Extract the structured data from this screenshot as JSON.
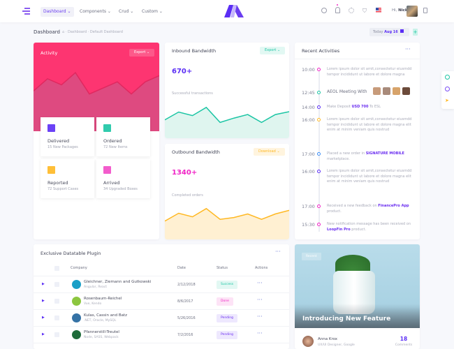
{
  "topbar": {
    "nav": [
      {
        "label": "Dashboard",
        "active": true
      },
      {
        "label": "Components"
      },
      {
        "label": "Crud"
      },
      {
        "label": "Custom"
      }
    ],
    "greeting": "Hi,",
    "user": "Nick"
  },
  "subheader": {
    "title": "Dashboard",
    "breadcrumb": [
      "Dashboard",
      "Default Dashboard"
    ],
    "today_label": "Today",
    "today_date": "Aug 16"
  },
  "activity": {
    "title": "Activity",
    "export_label": "Export",
    "chart_values": [
      55,
      75,
      65,
      85,
      50,
      60,
      70,
      50,
      70,
      80
    ],
    "tiles": [
      {
        "title": "Delivered",
        "sub": "15 New Packages",
        "icon": "books-icon",
        "color": "#5b2ef5"
      },
      {
        "title": "Ordered",
        "sub": "72 New Items",
        "icon": "layers-icon",
        "color": "#1bc5a4"
      },
      {
        "title": "Reported",
        "sub": "72 Support Cases",
        "icon": "mail-icon",
        "color": "#ffb822"
      },
      {
        "title": "Arrived",
        "sub": "34 Upgraded Boxes",
        "icon": "ruler-pencil-icon",
        "color": "#f24ac7"
      }
    ]
  },
  "inbound": {
    "title": "Inbound Bandwidth",
    "button": "Export",
    "value": "670+",
    "caption": "Successful transactions",
    "color": "#1bc5a4",
    "chart_values": [
      40,
      62,
      52,
      75,
      33,
      45,
      55,
      33,
      55,
      63
    ]
  },
  "outbound": {
    "title": "Outbound Bandwidth",
    "button": "Download",
    "value": "1340+",
    "caption": "Completed orders",
    "color": "#ffb822",
    "chart_values": [
      40,
      62,
      52,
      75,
      45,
      50,
      60,
      45,
      60,
      70
    ]
  },
  "recent": {
    "title": "Recent Activities",
    "events": [
      {
        "time": "10:00",
        "color": "#f024c6",
        "text": "Lorem ipsum dolor sit amit,consectetur eiusmdd tempor incididunt ut labore et dolore magna"
      },
      {
        "time": "12:45",
        "color": "#1bc5a4",
        "text": "AEOL Meeting With",
        "meeting": true
      },
      {
        "time": "14:00",
        "color": "#5b2ef5",
        "pre": "Make Deposit ",
        "link": "USD 700",
        "post": " To ESL"
      },
      {
        "time": "16:00",
        "color": "#ffb822",
        "text": "Lorem ipsum dolor sit amit,consectetur eiusmdd tempor incididunt ut labore et dolore magna elit enim at minim veniam quis nostrud"
      },
      {
        "time": "17:00",
        "color": "#3a8cf5",
        "pre": "Placed a new order in ",
        "link": "SIGNATURE MOBILE",
        "post": " marketplace."
      },
      {
        "time": "16:00",
        "color": "#5b2ef5",
        "text": "Lorem ipsum dolor sit amit,consectetur eiusmdd tempor incididunt ut labore et dolore magna elit enim at minim veniam quis nostrud"
      },
      {
        "time": "17:00",
        "color": "#f024c6",
        "pre": "Received a new feedback on ",
        "link": "FinancePro App",
        "post": " product."
      },
      {
        "time": "15:30",
        "color": "#f024c6",
        "pre": "New notification message has been received on ",
        "link": "LoopFin Pro",
        "post": " product."
      }
    ]
  },
  "table": {
    "title": "Exclusive Datatable Plugin",
    "columns": [
      "Company",
      "Date",
      "Status",
      "Actions"
    ],
    "rows": [
      {
        "name": "Gleichner, Ziemann and Gutkowski",
        "tech": "Angular, React",
        "date": "2/12/2018",
        "status": "Success",
        "logo": "#1a9fc7"
      },
      {
        "name": "Rosenbaum-Reichel",
        "tech": "Vue, Kendo",
        "date": "8/6/2017",
        "status": "Done",
        "logo": "#8cc63f"
      },
      {
        "name": "Kulas, Cassin and Batz",
        "tech": ".NET, Oracle, MySQL",
        "date": "5/26/2016",
        "status": "Pending",
        "logo": "#3572a5"
      },
      {
        "name": "Pfannerstill-Treutel",
        "tech": "Node, SASS, Webpack",
        "date": "7/2/2016",
        "status": "Pending",
        "logo": "#1e6b3a"
      }
    ]
  },
  "feature": {
    "badge": "Recent",
    "title": "Introducing New Feature",
    "author": "Anna Krox",
    "role": "UX/UI Designer, Google",
    "comments": "18",
    "comments_label": "Comments"
  }
}
